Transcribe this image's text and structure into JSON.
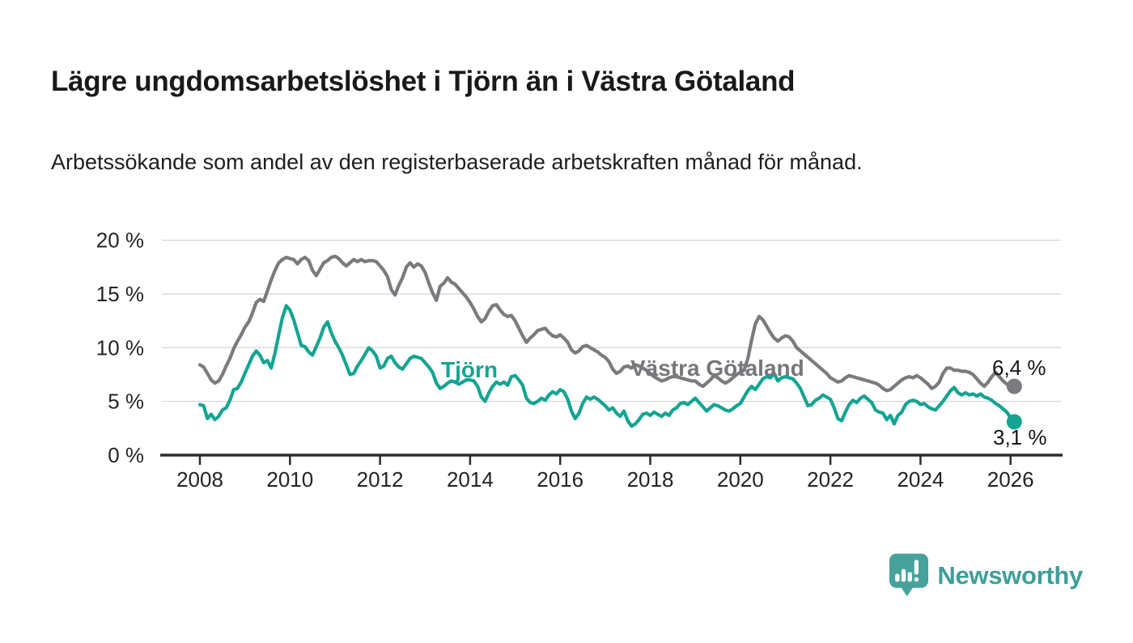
{
  "header": {
    "title": "Lägre ungdomsarbetslöshet i Tjörn än i Västra Götaland",
    "subtitle": "Arbetssökande som andel av den registerbaserade arbetskraften månad för månad."
  },
  "branding": {
    "logo_text": "Newsworthy",
    "logo_color": "#47a29c"
  },
  "chart_data": {
    "type": "line",
    "title": "Lägre ungdomsarbetslöshet i Tjörn än i Västra Götaland",
    "subtitle": "Arbetssökande som andel av den registerbaserade arbetskraften månad för månad.",
    "xlabel": "",
    "ylabel": "",
    "x_unit": "month",
    "frequency": "monthly",
    "x_start": "2008-01",
    "x_end": "2026-02",
    "xlim_years": [
      2007.12,
      2027.16
    ],
    "ylim": [
      0,
      21.3
    ],
    "grid": "horizontal",
    "legend_position": "inline-labels",
    "x_ticks": {
      "years": [
        2008,
        2010,
        2012,
        2014,
        2016,
        2018,
        2020,
        2022,
        2024,
        2026
      ],
      "labels": [
        "2008",
        "2010",
        "2012",
        "2014",
        "2016",
        "2018",
        "2020",
        "2022",
        "2024",
        "2026"
      ]
    },
    "y_ticks": {
      "values": [
        0,
        5,
        10,
        15,
        20
      ],
      "labels": [
        "0 %",
        "5 %",
        "10 %",
        "15 %",
        "20 %"
      ]
    },
    "series": [
      {
        "name": "Västra Götaland",
        "color": "#7a7a7f",
        "end_label": "6,4 %",
        "last_value": 6.4,
        "values": [
          8.4,
          8.2,
          7.6,
          7.0,
          6.7,
          6.9,
          7.5,
          8.3,
          9.0,
          9.9,
          10.6,
          11.2,
          11.9,
          12.4,
          13.2,
          14.2,
          14.5,
          14.3,
          15.3,
          16.3,
          17.2,
          17.9,
          18.2,
          18.4,
          18.3,
          18.2,
          17.8,
          18.2,
          18.4,
          18.1,
          17.2,
          16.7,
          17.3,
          17.9,
          18.1,
          18.4,
          18.5,
          18.3,
          17.9,
          17.6,
          17.9,
          18.2,
          18.0,
          18.2,
          18.0,
          18.1,
          18.1,
          18.0,
          17.6,
          17.2,
          16.6,
          15.4,
          14.9,
          15.8,
          16.5,
          17.5,
          17.9,
          17.5,
          17.8,
          17.6,
          17.0,
          16.0,
          15.1,
          14.4,
          15.7,
          16.0,
          16.5,
          16.1,
          15.9,
          15.5,
          15.1,
          14.7,
          14.2,
          13.6,
          12.9,
          12.4,
          12.7,
          13.4,
          13.9,
          14.0,
          13.5,
          13.1,
          12.9,
          13.0,
          12.5,
          11.8,
          11.1,
          10.5,
          10.9,
          11.2,
          11.6,
          11.7,
          11.8,
          11.4,
          11.1,
          11.0,
          11.2,
          10.9,
          10.5,
          9.8,
          9.5,
          9.7,
          10.1,
          10.2,
          10.0,
          9.8,
          9.6,
          9.3,
          9.1,
          8.7,
          8.0,
          7.6,
          7.8,
          8.2,
          8.3,
          8.1,
          8.4,
          8.3,
          8.1,
          7.9,
          7.6,
          7.3,
          7.1,
          6.9,
          7.0,
          7.2,
          7.3,
          7.3,
          7.2,
          7.1,
          7.0,
          6.9,
          6.9,
          6.6,
          6.4,
          6.7,
          7.0,
          7.4,
          7.2,
          6.9,
          6.7,
          6.9,
          7.2,
          7.5,
          7.7,
          7.9,
          9.0,
          10.7,
          12.2,
          12.9,
          12.6,
          12.0,
          11.4,
          10.9,
          10.6,
          10.9,
          11.1,
          11.0,
          10.6,
          10.0,
          9.7,
          9.4,
          9.1,
          8.8,
          8.5,
          8.2,
          7.9,
          7.6,
          7.2,
          7.0,
          6.8,
          6.9,
          7.2,
          7.4,
          7.3,
          7.2,
          7.1,
          7.0,
          6.9,
          6.8,
          6.7,
          6.5,
          6.2,
          6.0,
          6.1,
          6.4,
          6.7,
          7.0,
          7.2,
          7.3,
          7.2,
          7.4,
          7.2,
          6.9,
          6.6,
          6.2,
          6.4,
          6.8,
          7.6,
          8.1,
          8.1,
          7.9,
          7.9,
          7.8,
          7.8,
          7.7,
          7.5,
          7.1,
          6.7,
          6.4,
          6.8,
          7.3,
          7.7,
          7.3,
          6.9,
          6.6,
          6.5,
          6.4
        ]
      },
      {
        "name": "Tjörn",
        "color": "#15a492",
        "end_label": "3,1 %",
        "last_value": 3.1,
        "values": [
          4.7,
          4.6,
          3.4,
          3.8,
          3.3,
          3.6,
          4.2,
          4.4,
          5.1,
          6.1,
          6.2,
          6.8,
          7.6,
          8.4,
          9.2,
          9.7,
          9.3,
          8.6,
          8.8,
          8.1,
          9.5,
          11.2,
          12.8,
          13.9,
          13.5,
          12.6,
          11.4,
          10.2,
          10.1,
          9.6,
          9.3,
          10.1,
          10.9,
          11.9,
          12.4,
          11.4,
          10.6,
          10.0,
          9.3,
          8.4,
          7.5,
          7.6,
          8.3,
          8.8,
          9.4,
          10.0,
          9.7,
          9.2,
          8.1,
          8.3,
          9.0,
          9.2,
          8.6,
          8.2,
          8.0,
          8.5,
          9.0,
          9.2,
          9.1,
          9.0,
          8.6,
          8.2,
          7.7,
          6.7,
          6.2,
          6.4,
          6.7,
          6.9,
          6.8,
          6.6,
          6.8,
          7.0,
          7.0,
          6.9,
          6.4,
          5.4,
          5.0,
          5.8,
          6.4,
          6.8,
          6.6,
          6.8,
          6.5,
          7.3,
          7.4,
          7.0,
          6.5,
          5.3,
          4.9,
          4.8,
          5.0,
          5.3,
          5.1,
          5.6,
          5.9,
          5.7,
          6.1,
          5.9,
          5.2,
          4.1,
          3.4,
          3.9,
          4.8,
          5.4,
          5.2,
          5.4,
          5.2,
          4.9,
          4.6,
          4.2,
          4.4,
          3.9,
          3.6,
          4.1,
          3.2,
          2.7,
          2.9,
          3.3,
          3.8,
          3.9,
          3.7,
          4.0,
          3.8,
          3.6,
          3.9,
          3.7,
          4.2,
          4.4,
          4.8,
          4.9,
          4.7,
          5.0,
          5.3,
          4.9,
          4.5,
          4.1,
          4.4,
          4.7,
          4.6,
          4.4,
          4.2,
          4.1,
          4.3,
          4.6,
          4.8,
          5.4,
          6.0,
          6.4,
          6.1,
          6.6,
          7.1,
          7.3,
          7.2,
          7.6,
          6.9,
          7.2,
          7.3,
          7.2,
          7.1,
          6.7,
          6.2,
          5.4,
          4.6,
          4.7,
          5.1,
          5.3,
          5.6,
          5.4,
          5.2,
          4.4,
          3.4,
          3.2,
          4.0,
          4.7,
          5.1,
          4.9,
          5.3,
          5.5,
          5.2,
          4.9,
          4.2,
          4.0,
          3.9,
          3.3,
          3.7,
          2.9,
          3.7,
          4.0,
          4.7,
          5.0,
          5.1,
          5.0,
          4.7,
          4.8,
          4.5,
          4.3,
          4.2,
          4.6,
          5.0,
          5.5,
          6.0,
          6.3,
          5.8,
          5.6,
          5.8,
          5.6,
          5.7,
          5.5,
          5.7,
          5.4,
          5.3,
          5.1,
          4.8,
          4.6,
          4.3,
          4.0,
          3.5,
          3.1
        ]
      }
    ]
  }
}
